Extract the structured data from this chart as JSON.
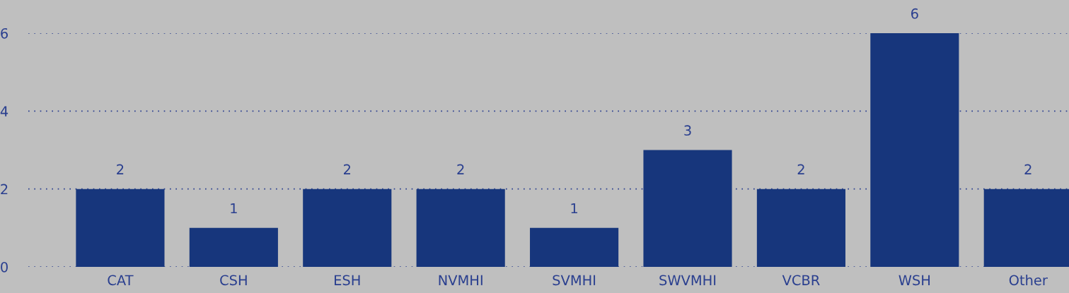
{
  "chart_data": {
    "type": "bar",
    "categories": [
      "CAT",
      "CSH",
      "ESH",
      "NVMHI",
      "SVMHI",
      "SWVMHI",
      "VCBR",
      "WSH",
      "Other"
    ],
    "values": [
      2,
      1,
      2,
      2,
      1,
      3,
      2,
      6,
      2
    ],
    "color": "#17367c",
    "ylim": [
      0,
      6
    ],
    "yticks": [
      0,
      2,
      4,
      6
    ],
    "grid": "y",
    "data_labels": true
  }
}
